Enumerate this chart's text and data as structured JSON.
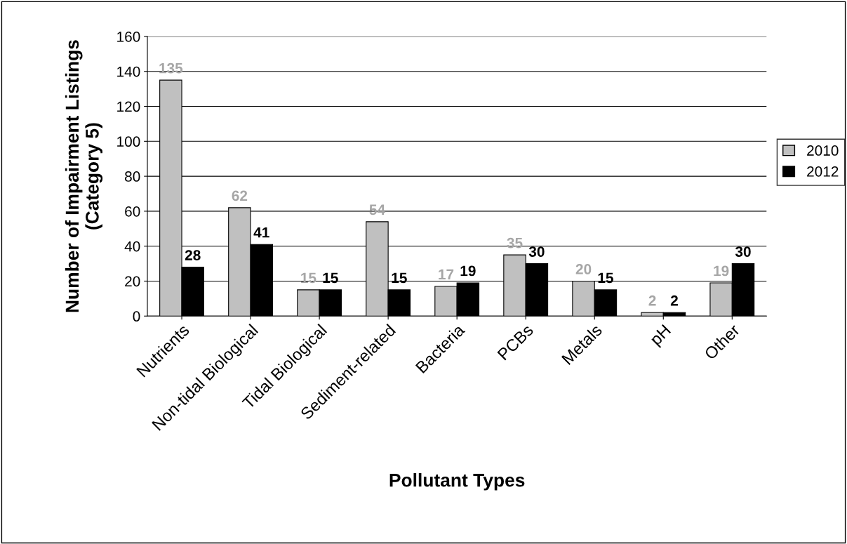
{
  "chart_data": {
    "type": "bar",
    "categories": [
      "Nutrients",
      "Non-tidal Biological",
      "Tidal Biological",
      "Sediment-related",
      "Bacteria",
      "PCBs",
      "Metals",
      "pH",
      "Other"
    ],
    "series": [
      {
        "name": "2010",
        "color": "#c0c0c0",
        "values": [
          135,
          62,
          15,
          54,
          17,
          35,
          20,
          2,
          19
        ]
      },
      {
        "name": "2012",
        "color": "#000000",
        "values": [
          28,
          41,
          15,
          15,
          19,
          30,
          15,
          2,
          30
        ]
      }
    ],
    "xlabel": "Pollutant Types",
    "ylabel": "Number of Impairment Listings\n(Category 5)",
    "ylim": [
      0,
      160
    ],
    "yticks": [
      0,
      20,
      40,
      60,
      80,
      100,
      120,
      140,
      160
    ],
    "grid": "y",
    "legend": "right",
    "data_labels": true
  }
}
